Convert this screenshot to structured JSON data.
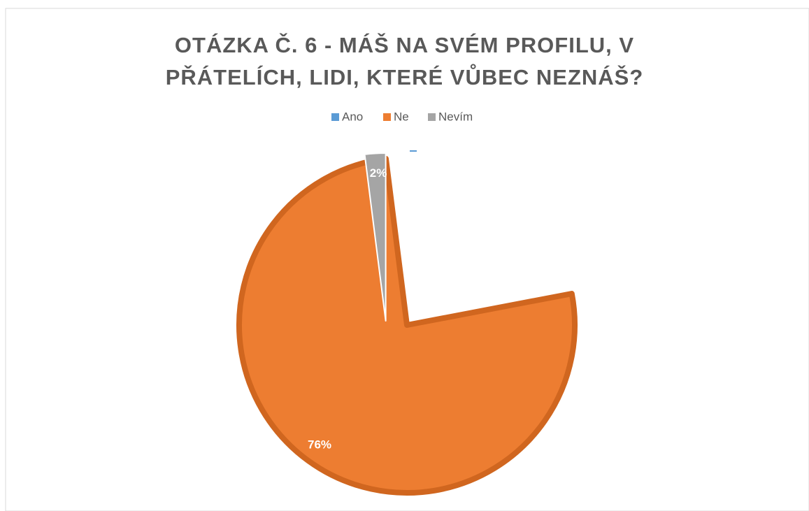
{
  "chart_data": {
    "type": "pie",
    "title": "OTÁZKA Č. 6 - MÁŠ NA SVÉM PROFILU, V PŘÁTELÍCH, LIDI, KTERÉ VŮBEC NEZNÁŠ?",
    "categories": [
      "Ano",
      "Ne",
      "Nevím"
    ],
    "values": [
      22,
      76,
      2
    ],
    "value_labels": [
      null,
      "76%",
      "2%"
    ],
    "colors": [
      "#5b9bd5",
      "#ed7d31",
      "#a5a5a5"
    ],
    "legend": "top"
  }
}
